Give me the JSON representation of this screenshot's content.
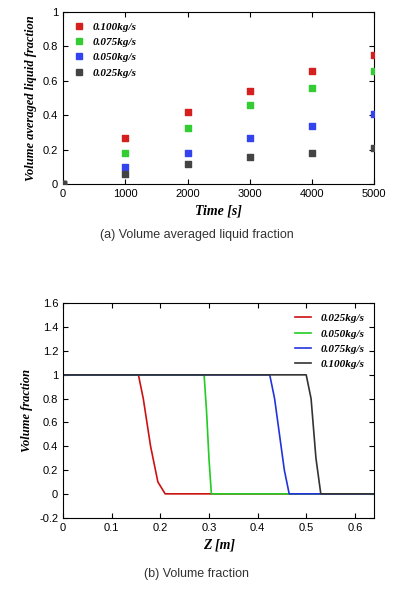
{
  "chart_data": [
    {
      "type": "scatter",
      "caption": "(a) Volume averaged liquid fraction",
      "x_label": "Time [s]",
      "y_label": "Volume averaged liquid fraction",
      "xlim": [
        0,
        5000
      ],
      "xticks": [
        0,
        1000,
        2000,
        3000,
        4000,
        5000
      ],
      "ylim": [
        0,
        1
      ],
      "yticks": [
        0,
        0.2,
        0.4,
        0.6,
        0.8,
        1
      ],
      "legend": "upper left",
      "marker": "square",
      "series": [
        {
          "name": "0.100kg/s",
          "color": "#d62020",
          "x": [
            0,
            1000,
            2000,
            3000,
            4000,
            5000
          ],
          "values": [
            0,
            0.27,
            0.42,
            0.54,
            0.66,
            0.75
          ]
        },
        {
          "name": "0.075kg/s",
          "color": "#33cc33",
          "x": [
            0,
            1000,
            2000,
            3000,
            4000,
            5000
          ],
          "values": [
            0,
            0.18,
            0.33,
            0.46,
            0.56,
            0.66
          ]
        },
        {
          "name": "0.050kg/s",
          "color": "#3344ee",
          "x": [
            0,
            1000,
            2000,
            3000,
            4000,
            5000
          ],
          "values": [
            0,
            0.1,
            0.18,
            0.27,
            0.34,
            0.41
          ]
        },
        {
          "name": "0.025kg/s",
          "color": "#444444",
          "x": [
            0,
            1000,
            2000,
            3000,
            4000,
            5000
          ],
          "values": [
            0,
            0.06,
            0.12,
            0.16,
            0.18,
            0.21
          ]
        }
      ]
    },
    {
      "type": "line",
      "caption": "(b) Volume fraction",
      "x_label": "Z [m]",
      "y_label": "Volume fraction",
      "xlim": [
        0,
        0.64
      ],
      "xticks": [
        0,
        0.1,
        0.2,
        0.3,
        0.4,
        0.5,
        0.6
      ],
      "ylim": [
        -0.2,
        1.6
      ],
      "yticks": [
        -0.2,
        0,
        0.2,
        0.4,
        0.6,
        0.8,
        1,
        1.2,
        1.4,
        1.6
      ],
      "legend": "upper right",
      "line_style": "solid",
      "series": [
        {
          "name": "0.025kg/s",
          "color": "#cc1111",
          "x": [
            0,
            0.155,
            0.165,
            0.18,
            0.195,
            0.21,
            0.64
          ],
          "values": [
            1,
            1,
            0.8,
            0.4,
            0.1,
            0,
            0
          ]
        },
        {
          "name": "0.050kg/s",
          "color": "#22cc22",
          "x": [
            0,
            0.29,
            0.295,
            0.3,
            0.305,
            0.64
          ],
          "values": [
            1,
            1,
            0.7,
            0.3,
            0,
            0
          ]
        },
        {
          "name": "0.075kg/s",
          "color": "#2233dd",
          "x": [
            0,
            0.425,
            0.435,
            0.445,
            0.455,
            0.465,
            0.64
          ],
          "values": [
            1,
            1,
            0.8,
            0.5,
            0.2,
            0,
            0
          ]
        },
        {
          "name": "0.100kg/s",
          "color": "#333333",
          "x": [
            0,
            0.5,
            0.51,
            0.52,
            0.53,
            0.64
          ],
          "values": [
            1,
            1,
            0.8,
            0.3,
            0,
            0
          ]
        }
      ]
    }
  ]
}
